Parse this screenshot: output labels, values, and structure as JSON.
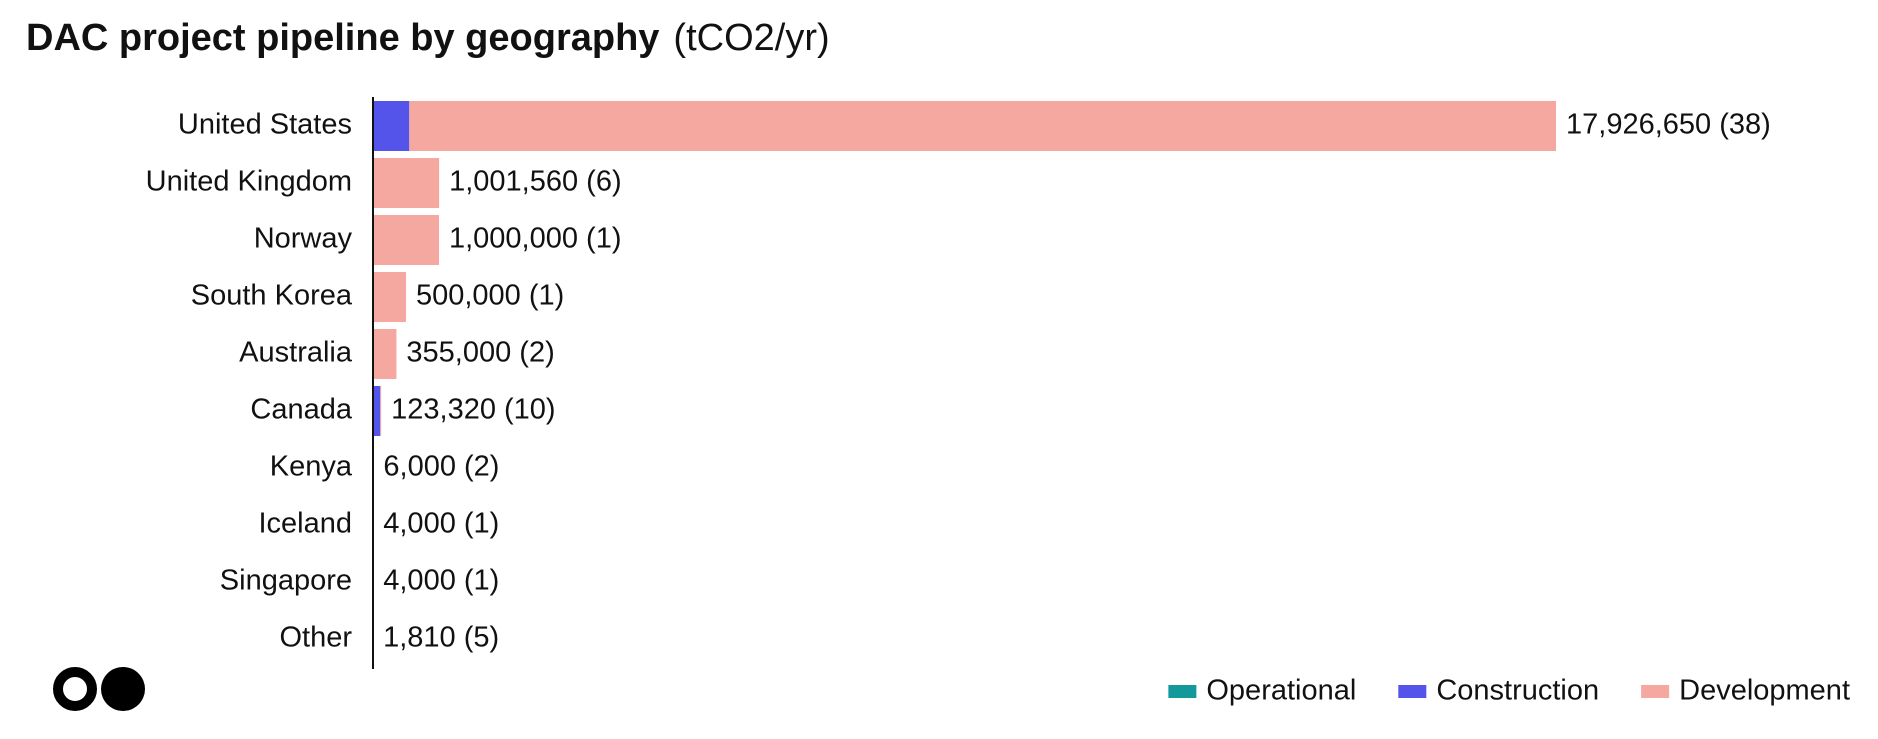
{
  "chart_data": {
    "type": "stacked-bar-horizontal",
    "title": "DAC project pipeline by geography",
    "subtitle": "(tCO2/yr)",
    "categories": [
      "United States",
      "United Kingdom",
      "Norway",
      "South Korea",
      "Australia",
      "Canada",
      "Kenya",
      "Iceland",
      "Singapore",
      "Other"
    ],
    "series": [
      {
        "name": "Operational",
        "color": "#13999a",
        "values": [
          0,
          0,
          0,
          0,
          0,
          0,
          0,
          4000,
          0,
          0
        ]
      },
      {
        "name": "Construction",
        "color": "#5454ea",
        "values": [
          550000,
          0,
          0,
          0,
          0,
          110000,
          0,
          0,
          0,
          0
        ]
      },
      {
        "name": "Development",
        "color": "#f4a8a0",
        "values": [
          17376650,
          1001560,
          1000000,
          500000,
          355000,
          13320,
          6000,
          0,
          4000,
          1810
        ]
      }
    ],
    "totals": [
      17926650,
      1001560,
      1000000,
      500000,
      355000,
      123320,
      6000,
      4000,
      4000,
      1810
    ],
    "value_labels": [
      "17,926,650 (38)",
      "1,001,560 (6)",
      "1,000,000 (1)",
      "500,000 (1)",
      "355,000 (2)",
      "123,320 (10)",
      "6,000 (2)",
      "4,000 (1)",
      "4,000 (1)",
      "1,810 (5)"
    ],
    "legend": "bottom-right"
  }
}
